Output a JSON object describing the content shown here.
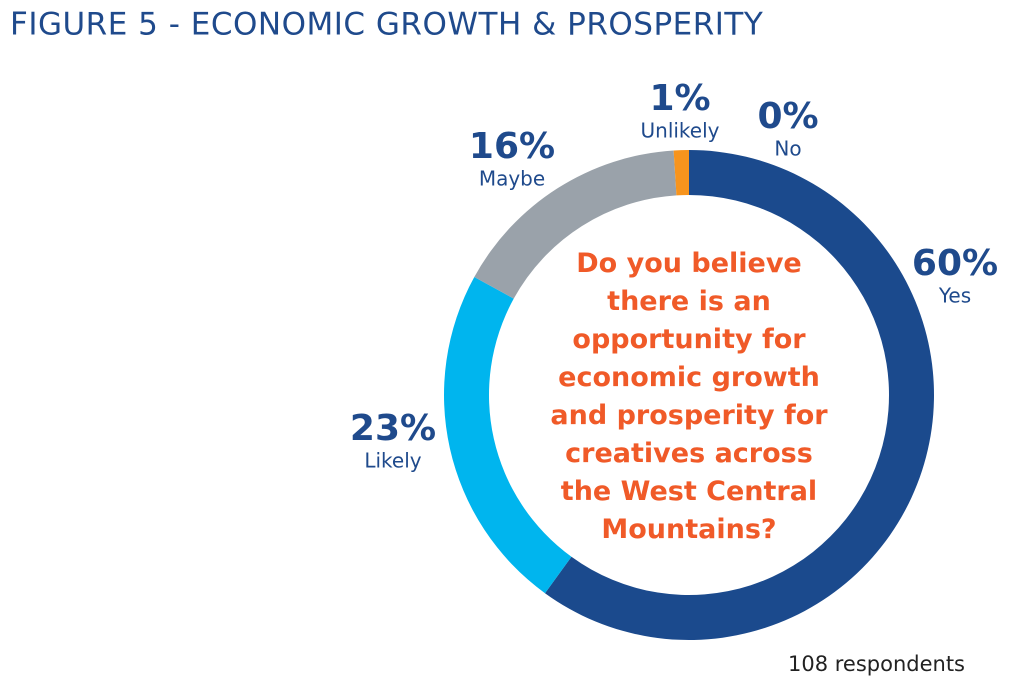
{
  "chart_data": {
    "type": "donut",
    "title": "FIGURE 5 - ECONOMIC GROWTH & PROSPERITY",
    "center_text": "Do you believe there is an opportunity for economic growth and prosperity for creatives across the West Central Mountains?",
    "categories": [
      "Yes",
      "Likely",
      "Maybe",
      "Unlikely",
      "No"
    ],
    "values": [
      60,
      23,
      16,
      1,
      0
    ],
    "value_labels": [
      "60%",
      "23%",
      "16%",
      "1%",
      "0%"
    ],
    "colors": [
      "#1b4a8d",
      "#00b5ee",
      "#9aa2aa",
      "#f7941d",
      "#0d2d5e"
    ],
    "note": "108 respondents"
  }
}
